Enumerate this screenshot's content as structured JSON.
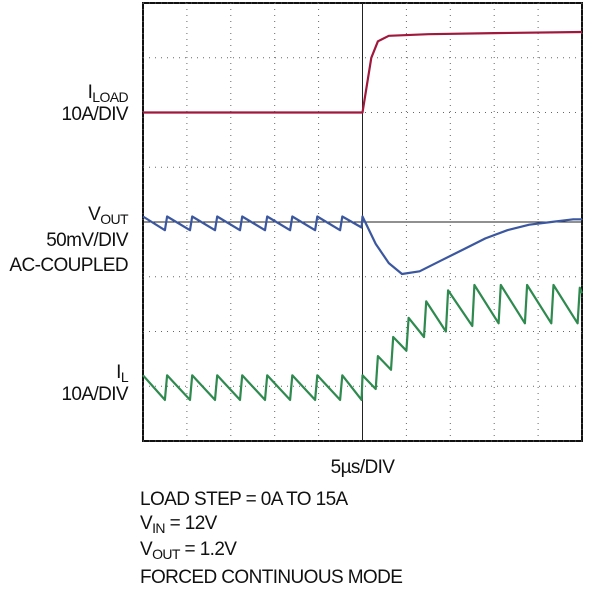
{
  "chart_data": {
    "type": "scope",
    "xlim": [
      0,
      10
    ],
    "ylim": [
      0,
      8
    ],
    "xticks": [
      0,
      1,
      2,
      3,
      4,
      5,
      6,
      7,
      8,
      9,
      10
    ],
    "yticks": [
      0,
      1,
      2,
      3,
      4,
      5,
      6,
      7,
      8
    ],
    "grid": true,
    "time_scale": "5µs/DIV",
    "series": [
      {
        "label": {
          "main": "I",
          "sub": "LOAD"
        },
        "scale": "10A/DIV",
        "color": "#a0183c",
        "x": [
          0,
          5.0,
          5.1,
          5.2,
          5.35,
          5.6,
          6.5,
          8,
          10
        ],
        "values": [
          6.0,
          6.0,
          6.5,
          7.0,
          7.3,
          7.4,
          7.43,
          7.45,
          7.47
        ]
      },
      {
        "label": {
          "main": "V",
          "sub": "OUT"
        },
        "scale": "50mV/DIV",
        "coupling": "AC-COUPLED",
        "color": "#3b57a0",
        "x": [
          0,
          0.5,
          0.55,
          1.07,
          1.12,
          1.64,
          1.69,
          2.21,
          2.26,
          2.78,
          2.83,
          3.35,
          3.4,
          3.92,
          3.97,
          4.49,
          4.54,
          4.98,
          5.0,
          5.3,
          5.6,
          5.9,
          6.3,
          6.8,
          7.3,
          7.8,
          8.3,
          8.8,
          9.3,
          9.8,
          10
        ],
        "values": [
          4.1,
          3.85,
          4.1,
          3.85,
          4.1,
          3.85,
          4.1,
          3.85,
          4.1,
          3.85,
          4.1,
          3.85,
          4.1,
          3.85,
          4.1,
          3.85,
          4.1,
          3.9,
          4.1,
          3.6,
          3.25,
          3.05,
          3.1,
          3.3,
          3.5,
          3.7,
          3.85,
          3.95,
          4.0,
          4.05,
          4.05
        ]
      },
      {
        "label": {
          "main": "I",
          "sub": "L"
        },
        "scale": "10A/DIV",
        "color": "#2e8a4e",
        "x": [
          0,
          0.5,
          0.55,
          1.07,
          1.12,
          1.64,
          1.69,
          2.21,
          2.26,
          2.78,
          2.83,
          3.35,
          3.4,
          3.92,
          3.97,
          4.49,
          4.54,
          4.98,
          5.0,
          5.3,
          5.35,
          5.65,
          5.7,
          6.0,
          6.05,
          6.4,
          6.45,
          6.9,
          6.95,
          7.5,
          7.55,
          8.1,
          8.15,
          8.7,
          8.75,
          9.3,
          9.35,
          9.9,
          9.95,
          10
        ],
        "values": [
          1.2,
          0.75,
          1.2,
          0.75,
          1.2,
          0.75,
          1.2,
          0.75,
          1.2,
          0.75,
          1.2,
          0.75,
          1.2,
          0.75,
          1.2,
          0.75,
          1.2,
          0.75,
          1.2,
          0.95,
          1.55,
          1.3,
          1.9,
          1.65,
          2.25,
          1.9,
          2.55,
          2.0,
          2.75,
          2.1,
          2.85,
          2.15,
          2.85,
          2.15,
          2.85,
          2.15,
          2.85,
          2.15,
          2.8,
          2.7
        ]
      }
    ],
    "notes": [
      {
        "main": "LOAD STEP = 0A TO 15A"
      },
      {
        "main": "V",
        "sub": "IN",
        "rest": " = 12V"
      },
      {
        "main": "V",
        "sub": "OUT",
        "rest": " = 1.2V"
      },
      {
        "main": "FORCED CONTINUOUS MODE"
      }
    ]
  }
}
